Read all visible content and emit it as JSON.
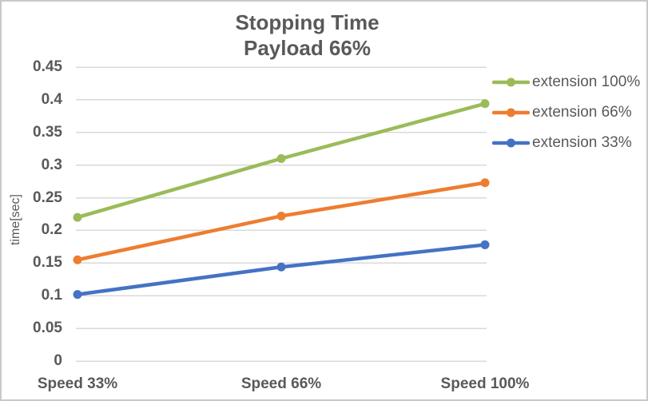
{
  "chart_data": {
    "type": "line",
    "title": "Stopping Time",
    "subtitle": "Payload 66%",
    "xlabel": "",
    "ylabel": "time[sec]",
    "categories": [
      "Speed 33%",
      "Speed 66%",
      "Speed 100%"
    ],
    "series": [
      {
        "name": "extension 100%",
        "color": "#9BBB59",
        "values": [
          0.22,
          0.31,
          0.394
        ]
      },
      {
        "name": "extension 66%",
        "color": "#ED7D31",
        "values": [
          0.155,
          0.222,
          0.273
        ]
      },
      {
        "name": "extension 33%",
        "color": "#4472C4",
        "values": [
          0.102,
          0.144,
          0.178
        ]
      }
    ],
    "ylim": [
      0,
      0.45
    ],
    "ytick_step": 0.05,
    "yticks": [
      "0",
      "0.05",
      "0.1",
      "0.15",
      "0.2",
      "0.25",
      "0.3",
      "0.35",
      "0.4",
      "0.45"
    ],
    "grid": true,
    "legend_position": "right",
    "text_color": "#595959",
    "gridline_color": "#D9D9D9"
  }
}
